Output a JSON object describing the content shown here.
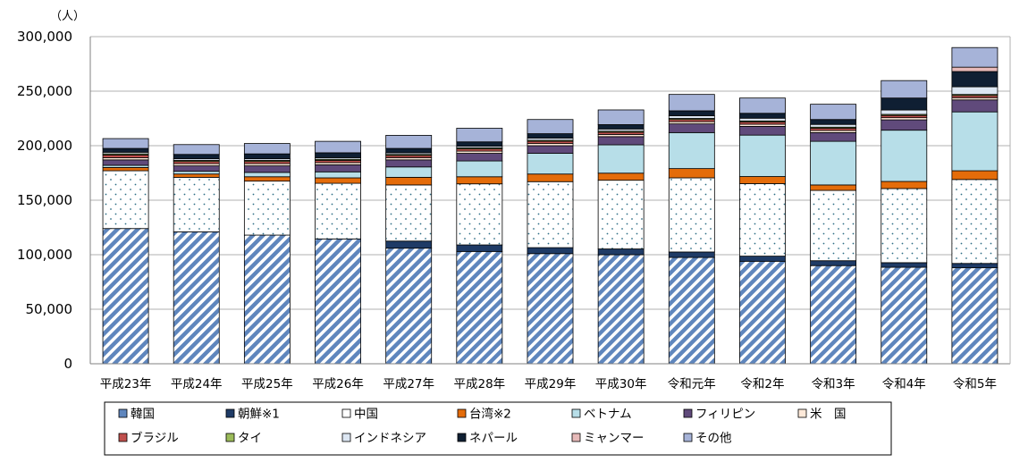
{
  "chart_data": {
    "type": "bar",
    "stacked": true,
    "unit_label": "（人）",
    "ylim": [
      0,
      300000
    ],
    "yticks": [
      "0",
      "50,000",
      "100,000",
      "150,000",
      "200,000",
      "250,000",
      "300,000"
    ],
    "ytick_values": [
      0,
      50000,
      100000,
      150000,
      200000,
      250000,
      300000
    ],
    "grid": true,
    "legend_position": "bottom",
    "categories": [
      "平成23年",
      "平成24年",
      "平成25年",
      "平成26年",
      "平成27年",
      "平成28年",
      "平成29年",
      "平成30年",
      "令和元年",
      "令和2年",
      "令和3年",
      "令和4年",
      "令和5年"
    ],
    "series": [
      {
        "name": "韓国",
        "color": "#9db2d6",
        "pattern": "diagonal",
        "values": [
          124000,
          121000,
          118000,
          114500,
          106000,
          103000,
          101000,
          100000,
          97500,
          94000,
          90000,
          88500,
          88000
        ]
      },
      {
        "name": "朝鮮※1",
        "color": "#1f3b66",
        "pattern": "solid",
        "values": [
          0,
          0,
          0,
          0,
          6500,
          6000,
          5500,
          5300,
          5000,
          4700,
          4500,
          4200,
          4000
        ]
      },
      {
        "name": "中国",
        "color": "#ffffff",
        "pattern": "dots",
        "values": [
          53000,
          50000,
          49500,
          51000,
          51500,
          56000,
          60500,
          63000,
          68000,
          66500,
          64500,
          68000,
          77000
        ]
      },
      {
        "name": "台湾※2",
        "color": "#e46c0a",
        "pattern": "solid",
        "values": [
          3000,
          3000,
          4000,
          5000,
          7000,
          6500,
          7000,
          6500,
          8500,
          6500,
          5000,
          6500,
          8000
        ]
      },
      {
        "name": "ベトナム",
        "color": "#b7dee8",
        "pattern": "solid",
        "values": [
          2000,
          2500,
          4000,
          5500,
          9500,
          14500,
          19000,
          26000,
          33000,
          38000,
          40000,
          47000,
          54000
        ]
      },
      {
        "name": "フィリピン",
        "color": "#604a7b",
        "pattern": "solid",
        "values": [
          5000,
          5000,
          6000,
          6500,
          6500,
          7000,
          7000,
          7500,
          8000,
          8000,
          8000,
          9500,
          11000
        ]
      },
      {
        "name": "米　国",
        "color": "#fde9d9",
        "pattern": "solid",
        "values": [
          2000,
          2000,
          2000,
          2000,
          2000,
          2000,
          2000,
          2000,
          2000,
          2000,
          2000,
          2000,
          2000
        ]
      },
      {
        "name": "ブラジル",
        "color": "#c0504d",
        "pattern": "solid",
        "values": [
          2500,
          2000,
          2000,
          2000,
          2000,
          2000,
          2000,
          2000,
          2000,
          2000,
          2000,
          2000,
          2000
        ]
      },
      {
        "name": "タイ",
        "color": "#9bbb59",
        "pattern": "solid",
        "values": [
          1000,
          1000,
          1000,
          1000,
          1000,
          1000,
          1000,
          1000,
          1000,
          1000,
          1000,
          1000,
          1000
        ]
      },
      {
        "name": "インドネシア",
        "color": "#dce6f2",
        "pattern": "solid",
        "values": [
          1500,
          1500,
          1500,
          1500,
          1500,
          1500,
          2000,
          2000,
          2500,
          2500,
          2500,
          4000,
          7000
        ]
      },
      {
        "name": "ネパール",
        "color": "#0f1f33",
        "pattern": "solid",
        "values": [
          3500,
          4000,
          4500,
          4500,
          4000,
          4000,
          4000,
          4000,
          4500,
          4500,
          4500,
          11000,
          14000
        ]
      },
      {
        "name": "ミャンマー",
        "color": "#e6b9b8",
        "pattern": "solid",
        "values": [
          0,
          0,
          0,
          0,
          0,
          0,
          0,
          0,
          0,
          0,
          0,
          0,
          4000
        ]
      },
      {
        "name": "その他",
        "color": "#a6b3d8",
        "pattern": "solid",
        "values": [
          9000,
          9000,
          9500,
          10500,
          12000,
          12500,
          13000,
          13500,
          15000,
          14000,
          14000,
          16000,
          18000
        ]
      }
    ]
  }
}
